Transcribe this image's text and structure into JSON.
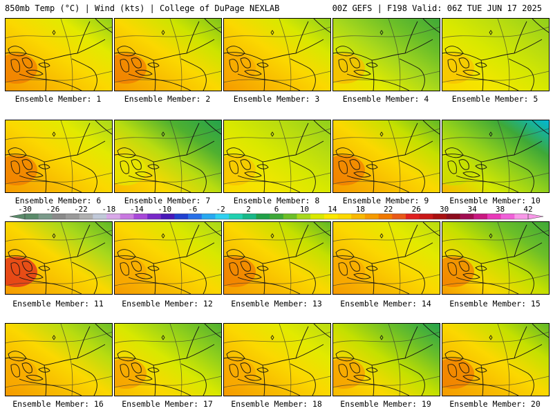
{
  "header": {
    "left": "850mb Temp (°C) | Wind (kts) | College of DuPage NEXLAB",
    "right": "00Z GEFS | F198 Valid: 06Z TUE JUN 17 2025"
  },
  "label_prefix": "Ensemble Member: ",
  "members": [
    {
      "id": 1,
      "colors": [
        "#f59a00",
        "#f8b800",
        "#fbd800",
        "#e2ea00",
        "#8fcf1c"
      ],
      "region_color": "#f07800"
    },
    {
      "id": 2,
      "colors": [
        "#f59a00",
        "#f8b800",
        "#fbd800",
        "#cde400",
        "#7ec41c"
      ],
      "region_color": "#f07800"
    },
    {
      "id": 3,
      "colors": [
        "#f59a00",
        "#f8b800",
        "#fbd800",
        "#d8e800",
        "#8fcf1c"
      ],
      "region_color": "#f8a800"
    },
    {
      "id": 4,
      "colors": [
        "#fbd800",
        "#e2ea00",
        "#a8d81c",
        "#6cbf28",
        "#3ea838"
      ],
      "region_color": "#f8b800"
    },
    {
      "id": 5,
      "colors": [
        "#fbd800",
        "#f3e600",
        "#d8e800",
        "#b8dc10",
        "#8fcf1c"
      ],
      "region_color": "#f8c000"
    },
    {
      "id": 6,
      "colors": [
        "#f59a00",
        "#f8b800",
        "#fbd800",
        "#e2ea00",
        "#a8d81c"
      ],
      "region_color": "#f07800"
    },
    {
      "id": 7,
      "colors": [
        "#f8b800",
        "#fbd800",
        "#b8dc10",
        "#4fb030",
        "#24a24c"
      ],
      "region_color": "#e2ea00"
    },
    {
      "id": 8,
      "colors": [
        "#fbd800",
        "#f3e600",
        "#d8e800",
        "#b8dc10",
        "#8fcf1c"
      ],
      "region_color": "#f8c000"
    },
    {
      "id": 9,
      "colors": [
        "#f59a00",
        "#f8b800",
        "#fbd800",
        "#c4e000",
        "#5fb828"
      ],
      "region_color": "#f07800"
    },
    {
      "id": 10,
      "colors": [
        "#f8b800",
        "#d8e800",
        "#8fcf1c",
        "#3ea838",
        "#00b8d8"
      ],
      "region_color": "#c4e000"
    },
    {
      "id": 11,
      "colors": [
        "#f59a00",
        "#f8b800",
        "#fbd800",
        "#a8d81c",
        "#5fb828"
      ],
      "region_color": "#e02020"
    },
    {
      "id": 12,
      "colors": [
        "#f59a00",
        "#f8b800",
        "#fbd800",
        "#d8e800",
        "#a8d81c"
      ],
      "region_color": "#f8a800"
    },
    {
      "id": 13,
      "colors": [
        "#f59a00",
        "#f8b800",
        "#fbd800",
        "#c4e000",
        "#5fb828"
      ],
      "region_color": "#f07800"
    },
    {
      "id": 14,
      "colors": [
        "#f59a00",
        "#f8b800",
        "#fbd800",
        "#e2ea00",
        "#b8dc10"
      ],
      "region_color": "#f8a800"
    },
    {
      "id": 15,
      "colors": [
        "#f59a00",
        "#fbd800",
        "#c4e000",
        "#6cbf28",
        "#3ea838"
      ],
      "region_color": "#f07800"
    },
    {
      "id": 16,
      "colors": [
        "#f59a00",
        "#f8b800",
        "#fbd800",
        "#b8dc10",
        "#6cbf28"
      ],
      "region_color": "#f8a800"
    },
    {
      "id": 17,
      "colors": [
        "#f8b800",
        "#fbd800",
        "#d8e800",
        "#8fcf1c",
        "#4fb030"
      ],
      "region_color": "#f59a00"
    },
    {
      "id": 18,
      "colors": [
        "#f59a00",
        "#f8b800",
        "#fbd800",
        "#e2ea00",
        "#b8dc10"
      ],
      "region_color": "#f8a800"
    },
    {
      "id": 19,
      "colors": [
        "#f8b800",
        "#fbd800",
        "#c4e000",
        "#6cbf28",
        "#24a24c"
      ],
      "region_color": "#f59a00"
    },
    {
      "id": 20,
      "colors": [
        "#f59a00",
        "#f8b800",
        "#fbd800",
        "#c4e000",
        "#5fb828"
      ],
      "region_color": "#f07800"
    }
  ],
  "colorbar": {
    "ticks": [
      "-30",
      "-26",
      "-22",
      "-18",
      "-14",
      "-10",
      "-6",
      "-2",
      "2",
      "6",
      "10",
      "14",
      "18",
      "22",
      "26",
      "30",
      "34",
      "38",
      "42"
    ],
    "colors": [
      "#5a8a6a",
      "#7a9a8a",
      "#8a8a8a",
      "#9a9a9a",
      "#b0b0b0",
      "#c0c8d8",
      "#d8a8e8",
      "#c878e0",
      "#a848d8",
      "#7828c8",
      "#4818b8",
      "#2040d0",
      "#2870e8",
      "#28a8f0",
      "#30d0f0",
      "#20d0b0",
      "#18b888",
      "#20a048",
      "#3ea838",
      "#6cbf28",
      "#a8d81c",
      "#d8e800",
      "#fbe800",
      "#fbd800",
      "#f8b800",
      "#f59a00",
      "#f07800",
      "#e85818",
      "#e02020",
      "#c81818",
      "#a81010",
      "#8c0c1c",
      "#a00c50",
      "#c81880",
      "#e838b8",
      "#f060d8",
      "#f898e8"
    ]
  }
}
